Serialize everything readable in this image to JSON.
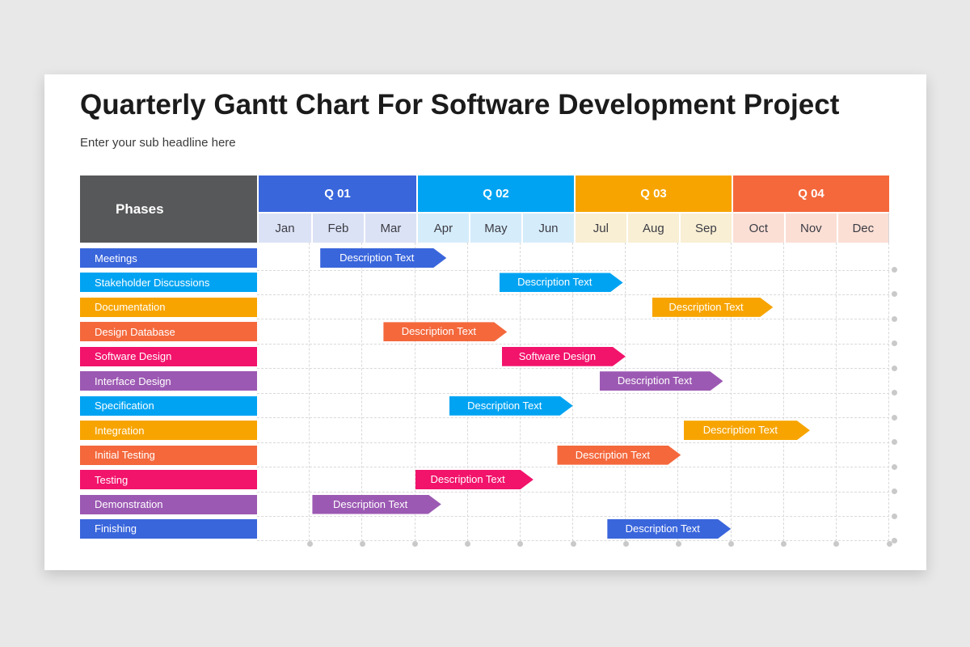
{
  "page": {
    "background": "#e9e8e8"
  },
  "slide": {
    "title": "Quarterly Gantt Chart For Software Development Project",
    "subtitle": "Enter your sub headline here"
  },
  "table": {
    "phases_label": "Phases",
    "header_bg": "#57585a",
    "quarters": [
      {
        "label": "Q 01",
        "color": "#3a66dc",
        "month_bg": "#dbe2f5"
      },
      {
        "label": "Q 02",
        "color": "#00a3f2",
        "month_bg": "#d5ecfb"
      },
      {
        "label": "Q 03",
        "color": "#f7a400",
        "month_bg": "#f9efd4"
      },
      {
        "label": "Q 04",
        "color": "#f4683c",
        "month_bg": "#fbdfd5"
      }
    ],
    "months": [
      "Jan",
      "Feb",
      "Mar",
      "Apr",
      "May",
      "Jun",
      "Jul",
      "Aug",
      "Sep",
      "Oct",
      "Nov",
      "Dec"
    ]
  },
  "chart_data": {
    "type": "gantt",
    "x_unit": "months",
    "x_range": [
      0,
      12
    ],
    "rows": [
      {
        "phase": "Meetings",
        "color": "#3a66dc",
        "bar_label": "Description Text",
        "start_month": 1.2,
        "end_month": 3.35
      },
      {
        "phase": "Stakeholder Discussions",
        "color": "#00a3f2",
        "bar_label": "Description Text",
        "start_month": 4.6,
        "end_month": 6.7
      },
      {
        "phase": "Documentation",
        "color": "#f7a400",
        "bar_label": "Description Text",
        "start_month": 7.5,
        "end_month": 9.55
      },
      {
        "phase": "Design Database",
        "color": "#f4683c",
        "bar_label": "Description Text",
        "start_month": 2.4,
        "end_month": 4.5
      },
      {
        "phase": "Software Design",
        "color": "#f2136b",
        "bar_label": "Software Design",
        "start_month": 4.65,
        "end_month": 6.75
      },
      {
        "phase": "Interface Design",
        "color": "#9c59b3",
        "bar_label": "Description Text",
        "start_month": 6.5,
        "end_month": 8.6
      },
      {
        "phase": "Specification",
        "color": "#00a3f2",
        "bar_label": "Description Text",
        "start_month": 3.65,
        "end_month": 5.75
      },
      {
        "phase": "Integration",
        "color": "#f7a400",
        "bar_label": "Description Text",
        "start_month": 8.1,
        "end_month": 10.25
      },
      {
        "phase": "Initial Testing",
        "color": "#f4683c",
        "bar_label": "Description Text",
        "start_month": 5.7,
        "end_month": 7.8
      },
      {
        "phase": "Testing",
        "color": "#f2136b",
        "bar_label": "Description Text",
        "start_month": 3.0,
        "end_month": 5.0
      },
      {
        "phase": "Demonstration",
        "color": "#9c59b3",
        "bar_label": "Description Text",
        "start_month": 1.05,
        "end_month": 3.25
      },
      {
        "phase": "Finishing",
        "color": "#3a66dc",
        "bar_label": "Description Text",
        "start_month": 6.65,
        "end_month": 8.75
      }
    ]
  }
}
